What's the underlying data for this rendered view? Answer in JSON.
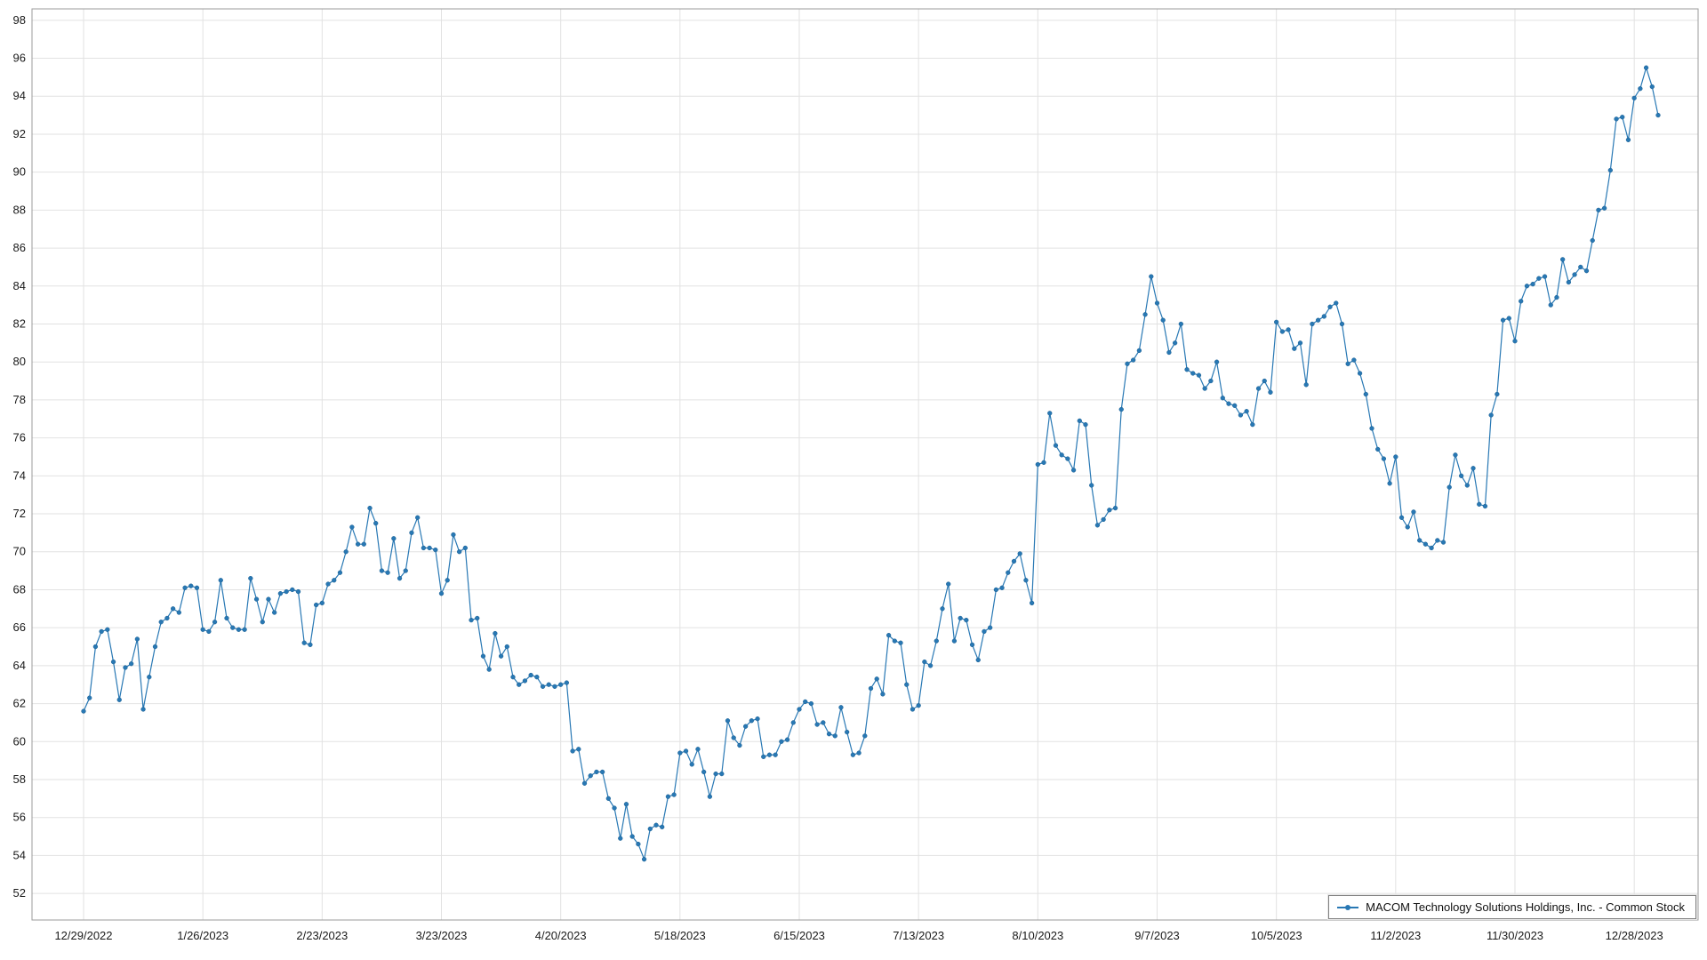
{
  "chart_data": {
    "type": "line",
    "title": "",
    "xlabel": "",
    "ylabel": "",
    "grid": true,
    "legend": {
      "position": "bottom-right"
    },
    "colors": {
      "line": "#2878b4",
      "grid": "#e2e2e2",
      "plot_border": "#9b9b9b",
      "tick_text": "#1a1a1a"
    },
    "y_axis": {
      "tick_min": 52,
      "tick_max": 98,
      "tick_step": 2,
      "render_min": 50.6,
      "render_max": 98.6
    },
    "x_ticks": [
      {
        "index": 0,
        "label": "12/29/2022"
      },
      {
        "index": 20,
        "label": "1/26/2023"
      },
      {
        "index": 40,
        "label": "2/23/2023"
      },
      {
        "index": 60,
        "label": "3/23/2023"
      },
      {
        "index": 80,
        "label": "4/20/2023"
      },
      {
        "index": 100,
        "label": "5/18/2023"
      },
      {
        "index": 120,
        "label": "6/15/2023"
      },
      {
        "index": 140,
        "label": "7/13/2023"
      },
      {
        "index": 160,
        "label": "8/10/2023"
      },
      {
        "index": 180,
        "label": "9/7/2023"
      },
      {
        "index": 200,
        "label": "10/5/2023"
      },
      {
        "index": 220,
        "label": "11/2/2023"
      },
      {
        "index": 240,
        "label": "11/30/2023"
      },
      {
        "index": 260,
        "label": "12/28/2023"
      }
    ],
    "series": [
      {
        "name": "MACOM Technology Solutions Holdings, Inc. - Common Stock",
        "color": "#2878b4",
        "values": [
          61.6,
          62.3,
          65.0,
          65.8,
          65.9,
          64.2,
          62.2,
          63.9,
          64.1,
          65.4,
          61.7,
          63.4,
          65.0,
          66.3,
          66.5,
          67.0,
          66.8,
          68.1,
          68.2,
          68.1,
          65.9,
          65.8,
          66.3,
          68.5,
          66.5,
          66.0,
          65.9,
          65.9,
          68.6,
          67.5,
          66.3,
          67.5,
          66.8,
          67.8,
          67.9,
          68.0,
          67.9,
          65.2,
          65.1,
          67.2,
          67.3,
          68.3,
          68.5,
          68.9,
          70.0,
          71.3,
          70.4,
          70.4,
          72.3,
          71.5,
          69.0,
          68.9,
          70.7,
          68.6,
          69.0,
          71.0,
          71.8,
          70.2,
          70.2,
          70.1,
          67.8,
          68.5,
          70.9,
          70.0,
          70.2,
          66.4,
          66.5,
          64.5,
          63.8,
          65.7,
          64.5,
          65.0,
          63.4,
          63.0,
          63.2,
          63.5,
          63.4,
          62.9,
          63.0,
          62.9,
          63.0,
          63.1,
          59.5,
          59.6,
          57.8,
          58.2,
          58.4,
          58.4,
          57.0,
          56.5,
          54.9,
          56.7,
          55.0,
          54.6,
          53.8,
          55.4,
          55.6,
          55.5,
          57.1,
          57.2,
          59.4,
          59.5,
          58.8,
          59.6,
          58.4,
          57.1,
          58.3,
          58.3,
          61.1,
          60.2,
          59.8,
          60.8,
          61.1,
          61.2,
          59.2,
          59.3,
          59.3,
          60.0,
          60.1,
          61.0,
          61.7,
          62.1,
          62.0,
          60.9,
          61.0,
          60.4,
          60.3,
          61.8,
          60.5,
          59.3,
          59.4,
          60.3,
          62.8,
          63.3,
          62.5,
          65.6,
          65.3,
          65.2,
          63.0,
          61.7,
          61.9,
          64.2,
          64.0,
          65.3,
          67.0,
          68.3,
          65.3,
          66.5,
          66.4,
          65.1,
          64.3,
          65.8,
          66.0,
          68.0,
          68.1,
          68.9,
          69.5,
          69.9,
          68.5,
          67.3,
          74.6,
          74.7,
          77.3,
          75.6,
          75.1,
          74.9,
          74.3,
          76.9,
          76.7,
          73.5,
          71.4,
          71.7,
          72.2,
          72.3,
          77.5,
          79.9,
          80.1,
          80.6,
          82.5,
          84.5,
          83.1,
          82.2,
          80.5,
          81.0,
          82.0,
          79.6,
          79.4,
          79.3,
          78.6,
          79.0,
          80.0,
          78.1,
          77.8,
          77.7,
          77.2,
          77.4,
          76.7,
          78.6,
          79.0,
          78.4,
          82.1,
          81.6,
          81.7,
          80.7,
          81.0,
          78.8,
          82.0,
          82.2,
          82.4,
          82.9,
          83.1,
          82.0,
          79.9,
          80.1,
          79.4,
          78.3,
          76.5,
          75.4,
          74.9,
          73.6,
          75.0,
          71.8,
          71.3,
          72.1,
          70.6,
          70.4,
          70.2,
          70.6,
          70.5,
          73.4,
          75.1,
          74.0,
          73.5,
          74.4,
          72.5,
          72.4,
          77.2,
          78.3,
          82.2,
          82.3,
          81.1,
          83.2,
          84.0,
          84.1,
          84.4,
          84.5,
          83.0,
          83.4,
          85.4,
          84.2,
          84.6,
          85.0,
          84.8,
          86.4,
          88.0,
          88.1,
          90.1,
          92.8,
          92.9,
          91.7,
          93.9,
          94.4,
          95.5,
          94.5,
          93.0
        ]
      }
    ]
  }
}
